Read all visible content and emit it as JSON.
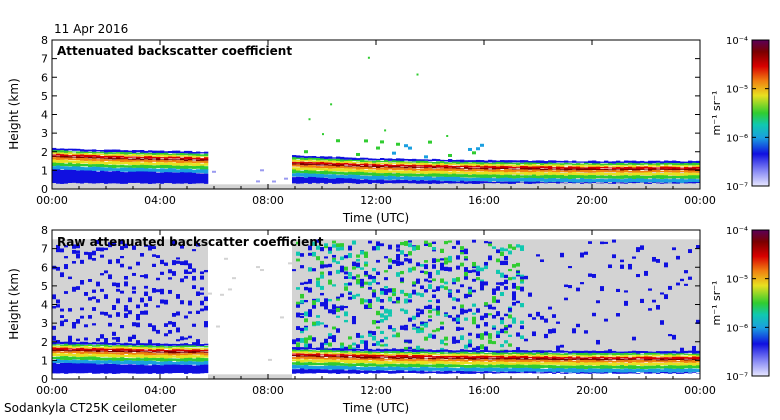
{
  "date_label": "11 Apr 2016",
  "footer": "Sodankyla CT25K ceilometer",
  "colorbar_unit": "m⁻¹ sr⁻¹",
  "colors": {
    "background_noise": "#d3d3d3",
    "scale": [
      "#e8e8ff",
      "#8a8cf5",
      "#1010e0",
      "#1a9fe0",
      "#10c8b0",
      "#30cc30",
      "#e8e020",
      "#f08010",
      "#d80000",
      "#7a0000",
      "#5a0058"
    ]
  },
  "chart_data": [
    {
      "type": "heatmap",
      "title": "Attenuated backscatter coefficient",
      "xlabel": "Time (UTC)",
      "ylabel": "Height (km)",
      "x_ticks": [
        "00:00",
        "04:00",
        "08:00",
        "12:00",
        "16:00",
        "20:00",
        "00:00"
      ],
      "y_ticks": [
        "0",
        "1",
        "2",
        "3",
        "4",
        "5",
        "6",
        "7",
        "8"
      ],
      "xlim_hours": [
        0,
        24
      ],
      "ylim_km": [
        0,
        8
      ],
      "colorscale": {
        "scale": "log",
        "range": [
          1e-07,
          0.0001
        ],
        "tick_labels": [
          "10⁻⁷",
          "10⁻⁶",
          "10⁻⁵",
          "10⁻⁴"
        ]
      },
      "data_gaps_hours": [
        [
          5.8,
          8.9
        ]
      ],
      "cloud_top_km": {
        "hours": [
          0,
          2,
          4,
          5.8,
          9,
          12,
          16,
          20,
          24
        ],
        "values": [
          2.2,
          2.1,
          2.05,
          2.0,
          1.8,
          1.65,
          1.55,
          1.5,
          1.5
        ]
      },
      "signal_layers": "boundary layer aerosol/cloud from 0 to ~2 km, scattered returns above 2 km after 09:00"
    },
    {
      "type": "heatmap",
      "title": "Raw attenuated backscatter coefficient",
      "xlabel": "Time (UTC)",
      "ylabel": "Height (km)",
      "x_ticks": [
        "00:00",
        "04:00",
        "08:00",
        "12:00",
        "16:00",
        "20:00",
        "00:00"
      ],
      "y_ticks": [
        "0",
        "1",
        "2",
        "3",
        "4",
        "5",
        "6",
        "7",
        "8"
      ],
      "xlim_hours": [
        0,
        24
      ],
      "ylim_km": [
        0,
        8
      ],
      "colorscale": {
        "scale": "log",
        "range": [
          1e-07,
          0.0001
        ],
        "tick_labels": [
          "10⁻⁷",
          "10⁻⁶",
          "10⁻⁵",
          "10⁻⁴"
        ]
      },
      "data_gaps_hours": [
        [
          5.8,
          8.9
        ]
      ],
      "cloud_top_km": {
        "hours": [
          0,
          2,
          4,
          5.8,
          9,
          12,
          16,
          20,
          24
        ],
        "values": [
          2.0,
          1.95,
          1.9,
          1.9,
          1.7,
          1.6,
          1.55,
          1.5,
          1.5
        ]
      },
      "signal_layers": "strong noise field (blue/green) up to ~7.5 km between 09:00 and 17:30"
    }
  ]
}
